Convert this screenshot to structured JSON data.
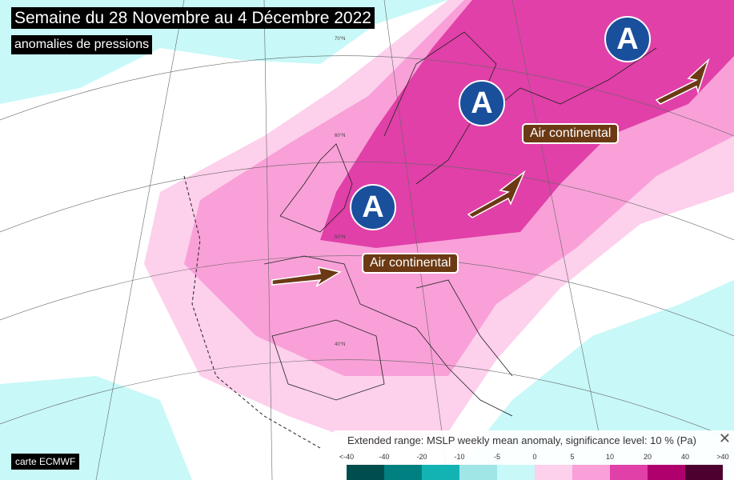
{
  "title": "Semaine du 28 Novembre au 4 Décembre 2022",
  "subtitle": "anomalies de pressions",
  "credit": "carte ECMWF",
  "map": {
    "high_pressure_label": "A",
    "high_pressure_centers": [
      "Laponie",
      "Finlande/Baltique",
      "Benelux/Allemagne"
    ],
    "arrow_labels": [
      "Air continental",
      "Air continental"
    ],
    "latitude_labels": [
      "70°N",
      "60°N",
      "50°N",
      "40°N"
    ],
    "colors": {
      "high_marker": "#1a4f9c",
      "arrow": "#6b3a14",
      "label_bg": "#6b3a14"
    }
  },
  "legend": {
    "title": "Extended range: MSLP weekly mean anomaly, significance level: 10 % (Pa)",
    "close_icon": "close-icon",
    "ticks": [
      "<-40",
      "-40",
      "-20",
      "-10",
      "-5",
      "0",
      "5",
      "10",
      "20",
      "40",
      ">40"
    ],
    "colors": [
      "#004d4d",
      "#008080",
      "#13b3b3",
      "#a0e6e6",
      "#c8f8f8",
      "#fdd0ec",
      "#f9a0d8",
      "#e040a8",
      "#b0006e",
      "#4d0030"
    ]
  }
}
